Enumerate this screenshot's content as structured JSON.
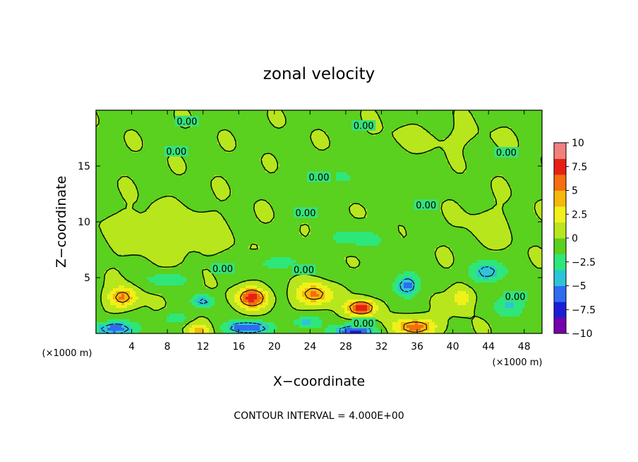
{
  "chart_data": {
    "type": "heatmap",
    "title": "zonal velocity",
    "xlabel": "X−coordinate",
    "ylabel": "Z−coordinate",
    "x_unit_left": "(×1000 m)",
    "x_unit_right": "(×1000 m)",
    "xlim": [
      0,
      50
    ],
    "ylim": [
      0,
      20
    ],
    "x_ticks": [
      "4",
      "8",
      "12",
      "16",
      "20",
      "24",
      "28",
      "32",
      "36",
      "40",
      "44",
      "48"
    ],
    "x_tick_values": [
      4,
      8,
      12,
      16,
      20,
      24,
      28,
      32,
      36,
      40,
      44,
      48
    ],
    "y_ticks": [
      "5",
      "10",
      "15"
    ],
    "y_tick_values": [
      5,
      10,
      15
    ],
    "colorbar": {
      "min": -10,
      "max": 10,
      "tick_labels": [
        "10",
        "7.5",
        "5",
        "2.5",
        "0",
        "−2.5",
        "−5",
        "−7.5",
        "−10"
      ],
      "tick_values": [
        10,
        7.5,
        5,
        2.5,
        0,
        -2.5,
        -5,
        -7.5,
        -10
      ],
      "colors": [
        "#7700aa",
        "#1d1dd8",
        "#2f6cf0",
        "#2ec4d8",
        "#2ee77a",
        "#5ad01f",
        "#b8e61c",
        "#f0f01a",
        "#f5b80c",
        "#f56e10",
        "#e82014",
        "#f2807f"
      ]
    },
    "contour_labels": [
      {
        "text": "0.00",
        "x": 10.2,
        "z": 19.0
      },
      {
        "text": "0.00",
        "x": 30.0,
        "z": 18.6
      },
      {
        "text": "0.00",
        "x": 9.0,
        "z": 16.3
      },
      {
        "text": "0.00",
        "x": 46.0,
        "z": 16.2
      },
      {
        "text": "0.00",
        "x": 25.0,
        "z": 14.0
      },
      {
        "text": "0.00",
        "x": 23.5,
        "z": 10.8
      },
      {
        "text": "0.00",
        "x": 37.0,
        "z": 11.5
      },
      {
        "text": "0.00",
        "x": 14.2,
        "z": 5.8
      },
      {
        "text": "0.00",
        "x": 23.3,
        "z": 5.7
      },
      {
        "text": "0.00",
        "x": 30.0,
        "z": 0.9
      },
      {
        "text": "0.00",
        "x": 47.0,
        "z": 3.3
      }
    ],
    "blobs": [
      {
        "x": 3.0,
        "z": 3.2,
        "sx": 1.6,
        "sz": 0.9,
        "v": 5.5
      },
      {
        "x": 17.5,
        "z": 3.2,
        "sx": 1.7,
        "sz": 0.9,
        "v": 7.5
      },
      {
        "x": 24.5,
        "z": 3.5,
        "sx": 2.0,
        "sz": 1.0,
        "v": 5.5
      },
      {
        "x": 29.8,
        "z": 2.3,
        "sx": 1.6,
        "sz": 0.7,
        "v": 8.0
      },
      {
        "x": 35.8,
        "z": 0.6,
        "sx": 2.2,
        "sz": 0.8,
        "v": 6.5
      },
      {
        "x": 41.0,
        "z": 3.2,
        "sx": 1.2,
        "sz": 1.1,
        "v": 3.5
      },
      {
        "x": 11.5,
        "z": 0.3,
        "sx": 1.3,
        "sz": 0.6,
        "v": 4.0
      },
      {
        "x": 34.8,
        "z": 4.3,
        "sx": 1.4,
        "sz": 1.0,
        "v": -5.5
      },
      {
        "x": 43.8,
        "z": 5.5,
        "sx": 1.8,
        "sz": 1.0,
        "v": -5.0
      },
      {
        "x": 12.0,
        "z": 2.9,
        "sx": 1.2,
        "sz": 0.6,
        "v": -4.5
      },
      {
        "x": 2.0,
        "z": 0.4,
        "sx": 2.3,
        "sz": 0.7,
        "v": -6.0
      },
      {
        "x": 17.0,
        "z": 0.5,
        "sx": 2.5,
        "sz": 0.6,
        "v": -6.5
      },
      {
        "x": 29.0,
        "z": 0.2,
        "sx": 2.5,
        "sz": 0.6,
        "v": -6.5
      },
      {
        "x": 23.5,
        "z": 1.0,
        "sx": 1.5,
        "sz": 0.6,
        "v": -3.5
      },
      {
        "x": 46.5,
        "z": 2.5,
        "sx": 2.0,
        "sz": 1.0,
        "v": -3.0
      },
      {
        "x": 9.0,
        "z": 1.4,
        "sx": 1.5,
        "sz": 0.6,
        "v": -2.5
      },
      {
        "x": 8.0,
        "z": 4.8,
        "sx": 2.5,
        "sz": 0.7,
        "v": -2.5
      },
      {
        "x": 20.0,
        "z": 6.3,
        "sx": 4.0,
        "sz": 0.8,
        "v": -2.0
      },
      {
        "x": 29.0,
        "z": 8.5,
        "sx": 3.5,
        "sz": 1.0,
        "v": -2.0
      },
      {
        "x": 44.0,
        "z": 9.5,
        "sx": 3.0,
        "sz": 2.0,
        "v": 0.8
      },
      {
        "x": 30.0,
        "z": 14.0,
        "sx": 6.0,
        "sz": 1.5,
        "v": -1.2
      },
      {
        "x": 38.0,
        "z": 17.5,
        "sx": 7.0,
        "sz": 1.2,
        "v": 0.6
      },
      {
        "x": 8.0,
        "z": 9.0,
        "sx": 6.0,
        "sz": 2.0,
        "v": 1.8
      }
    ],
    "contour_interval_text": "CONTOUR INTERVAL = 4.000E+00"
  }
}
